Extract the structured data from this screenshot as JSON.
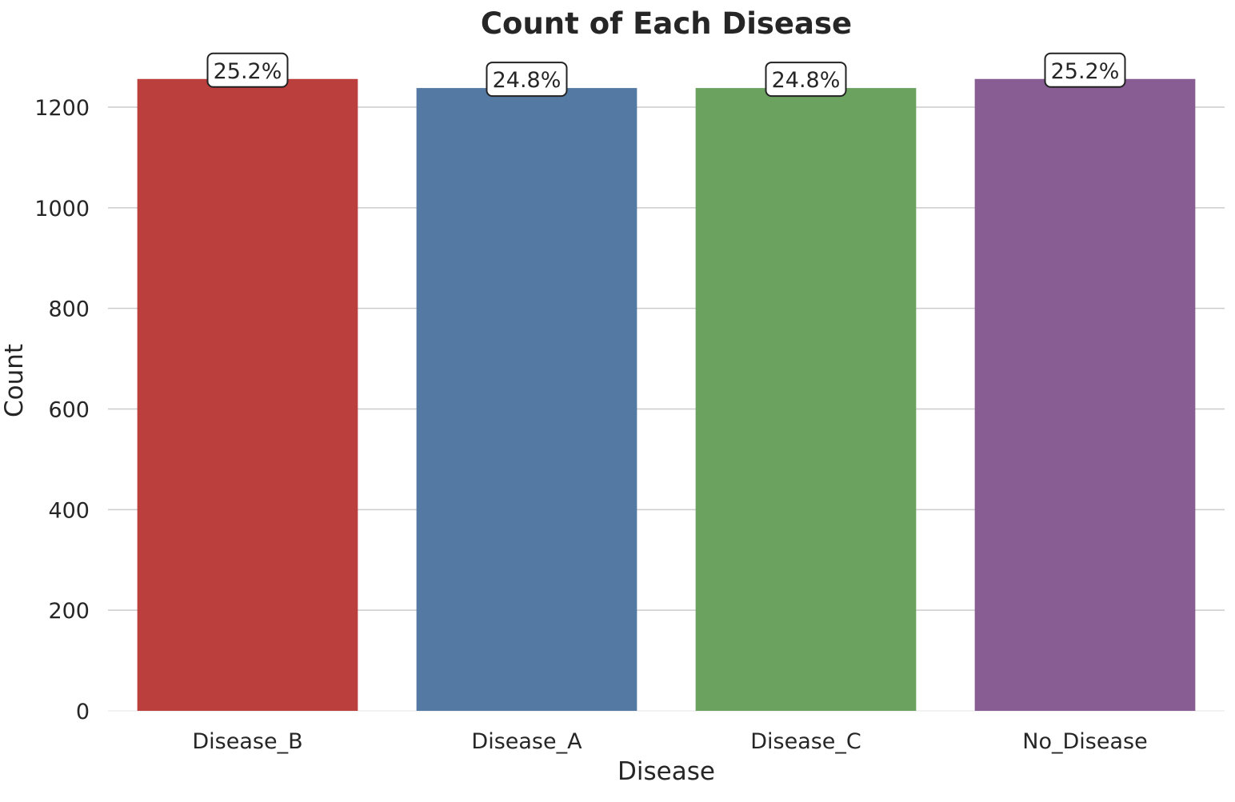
{
  "chart_data": {
    "type": "bar",
    "title": "Count of Each Disease",
    "xlabel": "Disease",
    "ylabel": "Count",
    "categories": [
      "Disease_B",
      "Disease_A",
      "Disease_C",
      "No_Disease"
    ],
    "values": [
      1256,
      1238,
      1238,
      1256
    ],
    "data_labels": [
      "25.2%",
      "24.8%",
      "24.8%",
      "25.2%"
    ],
    "colors": [
      "#bb3f3c",
      "#547aa3",
      "#6ca25f",
      "#885d93"
    ],
    "ylim": [
      0,
      1300
    ],
    "yticks": [
      0,
      200,
      400,
      600,
      800,
      1000,
      1200
    ],
    "ytick_labels": [
      "0",
      "200",
      "400",
      "600",
      "800",
      "1000",
      "1200"
    ],
    "grid": "horizontal",
    "legend": "none"
  }
}
